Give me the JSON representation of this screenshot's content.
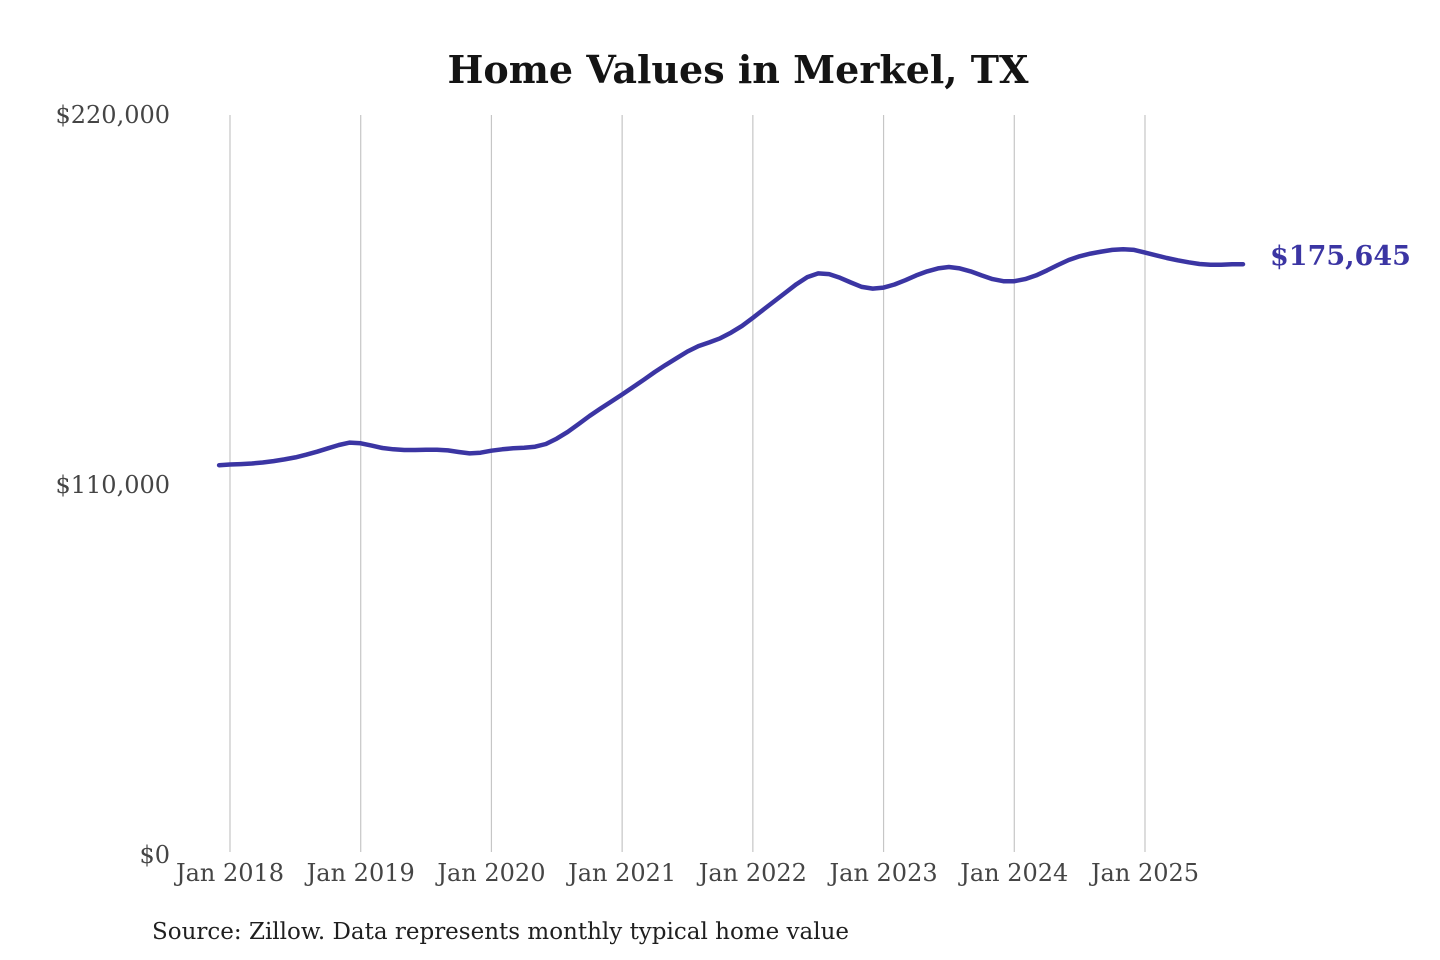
{
  "header": {
    "title": "Home Values in Merkel, TX"
  },
  "footer": {
    "source_note": "Source: Zillow. Data represents monthly typical home value"
  },
  "chart_data": {
    "type": "line",
    "title": "Home Values in Merkel, TX",
    "unit": "USD",
    "grid": "vertical",
    "legend": "none",
    "line_color": "#3b35a3",
    "end_label": "$175,645",
    "end_value": 175645,
    "y_axis": {
      "range": [
        0,
        220000
      ],
      "ticks": [
        {
          "value": 0,
          "label": "$0"
        },
        {
          "value": 110000,
          "label": "$110,000"
        },
        {
          "value": 220000,
          "label": "$220,000"
        }
      ]
    },
    "x_axis": {
      "ticks": [
        "Jan 2018",
        "Jan 2019",
        "Jan 2020",
        "Jan 2021",
        "Jan 2022",
        "Jan 2023",
        "Jan 2024",
        "Jan 2025"
      ]
    },
    "series": [
      {
        "name": "Monthly typical home value",
        "points": [
          [
            "2017-12",
            115900
          ],
          [
            "2018-01",
            116100
          ],
          [
            "2018-02",
            116200
          ],
          [
            "2018-03",
            116400
          ],
          [
            "2018-04",
            116700
          ],
          [
            "2018-05",
            117100
          ],
          [
            "2018-06",
            117600
          ],
          [
            "2018-07",
            118200
          ],
          [
            "2018-08",
            119000
          ],
          [
            "2018-09",
            119900
          ],
          [
            "2018-10",
            120900
          ],
          [
            "2018-11",
            121900
          ],
          [
            "2018-12",
            122600
          ],
          [
            "2019-01",
            122400
          ],
          [
            "2019-02",
            121700
          ],
          [
            "2019-03",
            121000
          ],
          [
            "2019-04",
            120600
          ],
          [
            "2019-05",
            120400
          ],
          [
            "2019-06",
            120400
          ],
          [
            "2019-07",
            120500
          ],
          [
            "2019-08",
            120500
          ],
          [
            "2019-09",
            120300
          ],
          [
            "2019-10",
            119800
          ],
          [
            "2019-11",
            119400
          ],
          [
            "2019-12",
            119600
          ],
          [
            "2020-01",
            120200
          ],
          [
            "2020-02",
            120600
          ],
          [
            "2020-03",
            120900
          ],
          [
            "2020-04",
            121100
          ],
          [
            "2020-05",
            121400
          ],
          [
            "2020-06",
            122200
          ],
          [
            "2020-07",
            123800
          ],
          [
            "2020-08",
            125800
          ],
          [
            "2020-09",
            128100
          ],
          [
            "2020-10",
            130500
          ],
          [
            "2020-11",
            132700
          ],
          [
            "2020-12",
            134800
          ],
          [
            "2021-01",
            136900
          ],
          [
            "2021-02",
            139100
          ],
          [
            "2021-03",
            141300
          ],
          [
            "2021-04",
            143600
          ],
          [
            "2021-05",
            145700
          ],
          [
            "2021-06",
            147700
          ],
          [
            "2021-07",
            149700
          ],
          [
            "2021-08",
            151300
          ],
          [
            "2021-09",
            152400
          ],
          [
            "2021-10",
            153600
          ],
          [
            "2021-11",
            155300
          ],
          [
            "2021-12",
            157300
          ],
          [
            "2022-01",
            159700
          ],
          [
            "2022-02",
            162200
          ],
          [
            "2022-03",
            164700
          ],
          [
            "2022-04",
            167200
          ],
          [
            "2022-05",
            169700
          ],
          [
            "2022-06",
            171800
          ],
          [
            "2022-07",
            172900
          ],
          [
            "2022-08",
            172700
          ],
          [
            "2022-09",
            171600
          ],
          [
            "2022-10",
            170200
          ],
          [
            "2022-11",
            168900
          ],
          [
            "2022-12",
            168400
          ],
          [
            "2023-01",
            168700
          ],
          [
            "2023-02",
            169600
          ],
          [
            "2023-03",
            170900
          ],
          [
            "2023-04",
            172300
          ],
          [
            "2023-05",
            173500
          ],
          [
            "2023-06",
            174400
          ],
          [
            "2023-07",
            174800
          ],
          [
            "2023-08",
            174400
          ],
          [
            "2023-09",
            173500
          ],
          [
            "2023-10",
            172300
          ],
          [
            "2023-11",
            171200
          ],
          [
            "2023-12",
            170600
          ],
          [
            "2024-01",
            170600
          ],
          [
            "2024-02",
            171200
          ],
          [
            "2024-03",
            172300
          ],
          [
            "2024-04",
            173800
          ],
          [
            "2024-05",
            175400
          ],
          [
            "2024-06",
            176900
          ],
          [
            "2024-07",
            178000
          ],
          [
            "2024-08",
            178800
          ],
          [
            "2024-09",
            179400
          ],
          [
            "2024-10",
            179900
          ],
          [
            "2024-11",
            180100
          ],
          [
            "2024-12",
            179900
          ],
          [
            "2025-01",
            179100
          ],
          [
            "2025-02",
            178300
          ],
          [
            "2025-03",
            177500
          ],
          [
            "2025-04",
            176800
          ],
          [
            "2025-05",
            176200
          ],
          [
            "2025-06",
            175700
          ],
          [
            "2025-07",
            175500
          ],
          [
            "2025-08",
            175500
          ],
          [
            "2025-09",
            175600
          ],
          [
            "2025-10",
            175645
          ]
        ]
      }
    ]
  }
}
